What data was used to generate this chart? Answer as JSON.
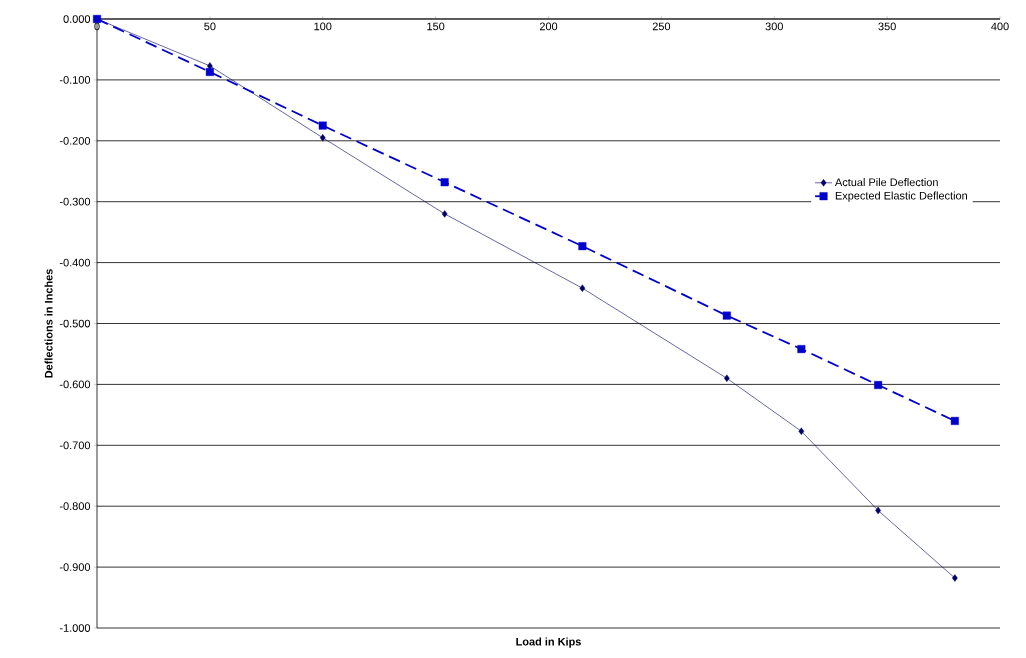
{
  "chart_data": {
    "type": "line",
    "xlabel": "Load in Kips",
    "ylabel": "Deflections in Inches",
    "xlim": [
      0,
      400
    ],
    "xticks": [
      0,
      50,
      100,
      150,
      200,
      250,
      300,
      350,
      400
    ],
    "ylim": [
      -1.0,
      0.0
    ],
    "yticks": [
      {
        "value": 0.0,
        "label": "0.000"
      },
      {
        "value": -0.1,
        "label": "-0.100"
      },
      {
        "value": -0.2,
        "label": "-0.200"
      },
      {
        "value": -0.3,
        "label": "-0.300"
      },
      {
        "value": -0.4,
        "label": "-0.400"
      },
      {
        "value": -0.5,
        "label": "-0.500"
      },
      {
        "value": -0.6,
        "label": "-0.600"
      },
      {
        "value": -0.7,
        "label": "-0.700"
      },
      {
        "value": -0.8,
        "label": "-0.800"
      },
      {
        "value": -0.9,
        "label": "-0.900"
      },
      {
        "value": -1.0,
        "label": "-1.000"
      }
    ],
    "grid": "y",
    "legend": "right",
    "x": [
      0,
      50,
      100,
      154,
      215,
      279,
      312,
      346,
      380
    ],
    "series": [
      {
        "name": "Actual Pile Deflection",
        "color": "#000066",
        "marker": "diamond",
        "line_style": "solid",
        "values": [
          0,
          -0.077,
          -0.195,
          -0.32,
          -0.442,
          -0.59,
          -0.677,
          -0.807,
          -0.918
        ]
      },
      {
        "name": "Expected Elastic Deflection",
        "color": "#0000cc",
        "marker": "square",
        "line_style": "dashed",
        "values": [
          0,
          -0.087,
          -0.175,
          -0.268,
          -0.373,
          -0.487,
          -0.542,
          -0.601,
          -0.66
        ]
      }
    ]
  }
}
